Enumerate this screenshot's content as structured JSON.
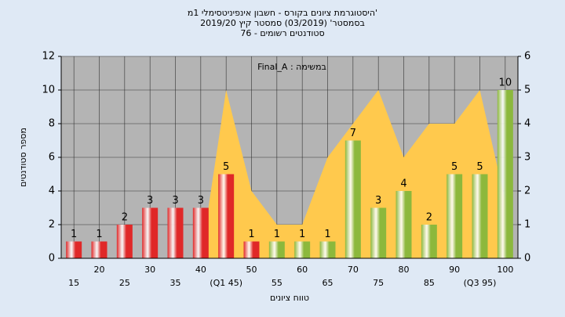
{
  "chart_data": {
    "type": "bar",
    "title": [
      "'היסטוגרמת ציונים בקורס - חשבון אינפיניטסימלי 1מ",
      "בסמסטר' (03/2019) סמסטר קיץ 2019/20",
      "סטודנטים רשומים - 76"
    ],
    "annotation": "במשימה : Final_A",
    "y_label": "מספר סטודנטים",
    "x_label": "טווח ציונים",
    "categories": [
      "15",
      "20",
      "25",
      "30",
      "35",
      "40",
      "(Q1 45)",
      "50",
      "55",
      "60",
      "65",
      "70",
      "75",
      "80",
      "85",
      "90",
      "(Q3 95)",
      "100"
    ],
    "series": [
      {
        "values": [
          1,
          1,
          2,
          3,
          3,
          3,
          5,
          1,
          1,
          1,
          1,
          7,
          3,
          4,
          2,
          5,
          5,
          10
        ],
        "colors": [
          "#e02828",
          "#e02828",
          "#e02828",
          "#e02828",
          "#e02828",
          "#e02828",
          "#e02828",
          "#e02828",
          "#8cb83c",
          "#8cb83c",
          "#8cb83c",
          "#8cb83c",
          "#8cb83c",
          "#8cb83c",
          "#8cb83c",
          "#8cb83c",
          "#8cb83c",
          "#8cb83c"
        ]
      },
      {
        "type": "area",
        "axis": "y2",
        "color": "#ffc94d",
        "values": [
          0,
          0,
          0,
          0,
          0,
          0,
          5,
          2,
          1,
          1,
          3,
          4,
          5,
          3,
          4,
          4,
          5,
          1.7
        ]
      }
    ],
    "ylim": [
      0,
      12
    ],
    "yticks": [
      0,
      2,
      4,
      6,
      8,
      10,
      12
    ],
    "y2lim": [
      0,
      6
    ],
    "y2ticks": [
      0,
      1,
      2,
      3,
      4,
      5,
      6
    ],
    "grid": true
  }
}
